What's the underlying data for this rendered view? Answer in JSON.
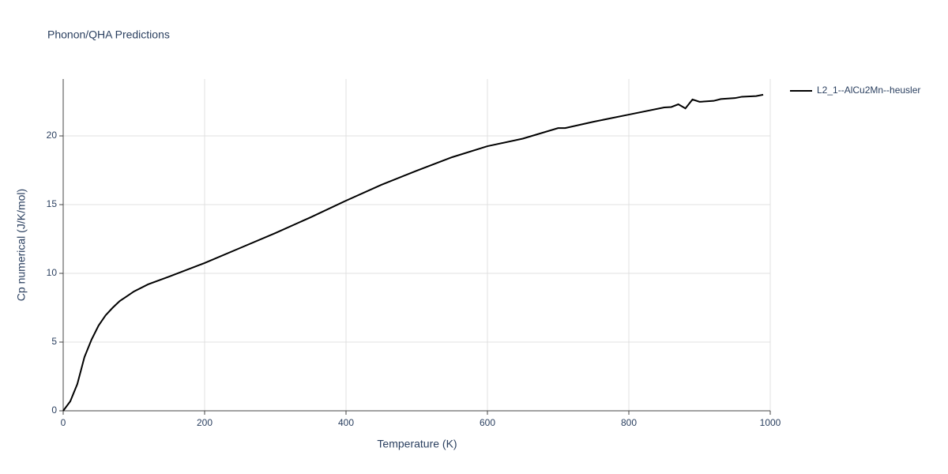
{
  "chart_data": {
    "type": "line",
    "title": "Phonon/QHA Predictions",
    "x_label": "Temperature (K)",
    "y_label": "Cp numerical (J/K/mol)",
    "x": [
      0,
      10,
      20,
      30,
      40,
      50,
      60,
      70,
      80,
      90,
      100,
      120,
      150,
      200,
      250,
      300,
      350,
      400,
      450,
      500,
      550,
      600,
      650,
      700,
      710,
      750,
      800,
      850,
      860,
      870,
      880,
      890,
      900,
      920,
      930,
      950,
      960,
      980,
      990
    ],
    "series": [
      {
        "name": "L2_1--AlCu2Mn--heusler",
        "color": "#000000",
        "values": [
          0,
          0.69,
          1.95,
          3.9,
          5.17,
          6.2,
          6.95,
          7.5,
          7.99,
          8.33,
          8.68,
          9.2,
          9.77,
          10.75,
          11.84,
          12.93,
          14.08,
          15.29,
          16.44,
          17.47,
          18.45,
          19.25,
          19.8,
          20.57,
          20.57,
          21.03,
          21.55,
          22.07,
          22.1,
          22.3,
          22.0,
          22.65,
          22.48,
          22.55,
          22.68,
          22.75,
          22.85,
          22.9,
          23.0
        ]
      }
    ],
    "xlim": [
      0,
      1000
    ],
    "xticks": [
      0,
      200,
      400,
      600,
      800,
      1000
    ],
    "ylim": [
      0,
      24.14
    ],
    "yticks": [
      0,
      5,
      10,
      15,
      20
    ],
    "grid": true
  }
}
